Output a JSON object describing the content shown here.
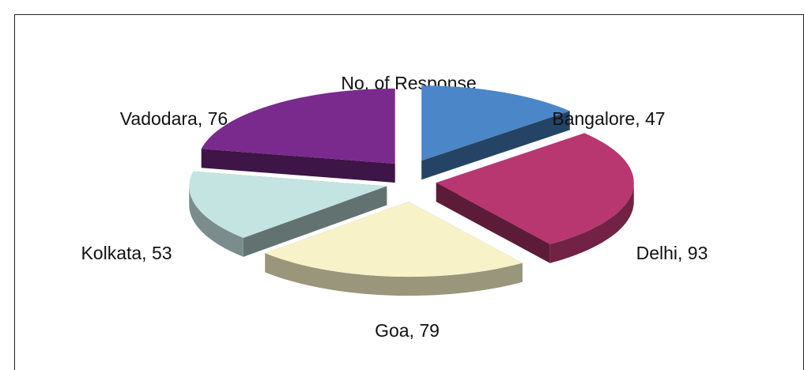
{
  "chart_data": {
    "type": "pie",
    "title": "No. of Response",
    "categories": [
      "Bangalore",
      "Delhi",
      "Goa",
      "Kolkata",
      "Vadodara"
    ],
    "values": [
      47,
      93,
      79,
      53,
      76
    ],
    "value_labels": [
      "Bangalore, 47",
      "Delhi, 93",
      "Goa, 79",
      "Kolkata, 53",
      "Vadodara, 76"
    ],
    "colors": [
      "#4a86c8",
      "#b83770",
      "#f7f2c8",
      "#c4e4e2",
      "#7a2a8c"
    ]
  }
}
